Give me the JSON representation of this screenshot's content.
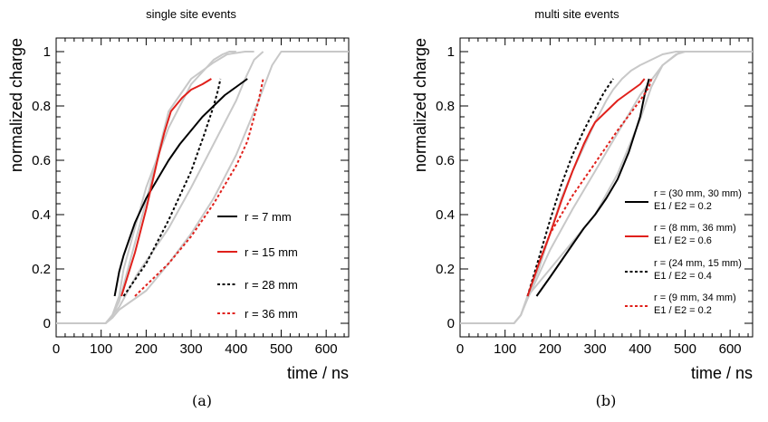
{
  "chart_data": [
    {
      "type": "line",
      "title": "single site events",
      "xlabel": "time / ns",
      "ylabel": "normalized charge",
      "caption": "(a)",
      "xlim": [
        0,
        650
      ],
      "ylim": [
        -0.05,
        1.05
      ],
      "xticks": [
        "0",
        "100",
        "200",
        "300",
        "400",
        "500",
        "600"
      ],
      "yticks": [
        "0",
        "0.2",
        "0.4",
        "0.6",
        "0.8",
        "1"
      ],
      "legend_position": "lower-right",
      "background_curves": [
        {
          "color": "#c8c8c8",
          "x": [
            0,
            110,
            125,
            140,
            150,
            200,
            250,
            300,
            350,
            370,
            385,
            400
          ],
          "y": [
            0,
            0,
            0.03,
            0.1,
            0.2,
            0.5,
            0.72,
            0.88,
            0.97,
            0.99,
            1,
            1
          ]
        },
        {
          "color": "#c8c8c8",
          "x": [
            0,
            110,
            125,
            140,
            150,
            200,
            250,
            300,
            350,
            380,
            420,
            440
          ],
          "y": [
            0,
            0,
            0.03,
            0.08,
            0.14,
            0.45,
            0.78,
            0.9,
            0.96,
            0.99,
            1,
            1
          ]
        },
        {
          "color": "#c8c8c8",
          "x": [
            0,
            110,
            125,
            140,
            180,
            250,
            300,
            350,
            400,
            420,
            440,
            460
          ],
          "y": [
            0,
            0,
            0.03,
            0.06,
            0.18,
            0.35,
            0.5,
            0.66,
            0.82,
            0.9,
            0.97,
            1
          ]
        },
        {
          "color": "#c8c8c8",
          "x": [
            0,
            110,
            125,
            140,
            200,
            250,
            300,
            350,
            400,
            450,
            480,
            500,
            650
          ],
          "y": [
            0,
            0,
            0.02,
            0.05,
            0.12,
            0.22,
            0.33,
            0.46,
            0.62,
            0.82,
            0.95,
            1,
            1
          ]
        }
      ],
      "series": [
        {
          "name": "r = 7 mm",
          "color": "#000000",
          "dash": "solid",
          "x": [
            130,
            140,
            150,
            175,
            200,
            225,
            250,
            275,
            300,
            325,
            350,
            375,
            400,
            425
          ],
          "y": [
            0.1,
            0.19,
            0.25,
            0.37,
            0.46,
            0.53,
            0.6,
            0.66,
            0.71,
            0.76,
            0.8,
            0.84,
            0.87,
            0.9
          ]
        },
        {
          "name": "r = 15 mm",
          "color": "#e0201b",
          "dash": "solid",
          "x": [
            145,
            175,
            200,
            225,
            240,
            255,
            265,
            280,
            300,
            325,
            345
          ],
          "y": [
            0.1,
            0.26,
            0.42,
            0.6,
            0.7,
            0.78,
            0.8,
            0.83,
            0.86,
            0.88,
            0.9
          ]
        },
        {
          "name": "r = 28 mm",
          "color": "#000000",
          "dash": "dash",
          "x": [
            150,
            200,
            250,
            300,
            330,
            350,
            360,
            365
          ],
          "y": [
            0.1,
            0.22,
            0.38,
            0.56,
            0.7,
            0.8,
            0.86,
            0.9
          ]
        },
        {
          "name": "r = 36 mm",
          "color": "#e0201b",
          "dash": "dash",
          "x": [
            175,
            200,
            250,
            300,
            350,
            400,
            425,
            440,
            450,
            460
          ],
          "y": [
            0.1,
            0.14,
            0.22,
            0.32,
            0.44,
            0.58,
            0.67,
            0.76,
            0.82,
            0.9
          ]
        }
      ]
    },
    {
      "type": "line",
      "title": "multi site events",
      "xlabel": "time / ns",
      "ylabel": "normalized charge",
      "caption": "(b)",
      "xlim": [
        0,
        650
      ],
      "ylim": [
        -0.05,
        1.05
      ],
      "xticks": [
        "0",
        "100",
        "200",
        "300",
        "400",
        "500",
        "600"
      ],
      "yticks": [
        "0",
        "0.2",
        "0.4",
        "0.6",
        "0.8",
        "1"
      ],
      "legend_position": "lower-right",
      "background_curves": [
        {
          "color": "#c8c8c8",
          "x": [
            0,
            120,
            135,
            150,
            175,
            200,
            225,
            250,
            275,
            300,
            325,
            340,
            360,
            380,
            400,
            425,
            450,
            480,
            500,
            650
          ],
          "y": [
            0,
            0,
            0.03,
            0.1,
            0.2,
            0.33,
            0.46,
            0.56,
            0.65,
            0.74,
            0.82,
            0.86,
            0.9,
            0.93,
            0.95,
            0.97,
            0.99,
            1,
            1,
            1
          ]
        },
        {
          "color": "#c8c8c8",
          "x": [
            0,
            120,
            135,
            150,
            170,
            200,
            250,
            300,
            350,
            400,
            425,
            450,
            480,
            500
          ],
          "y": [
            0,
            0,
            0.03,
            0.1,
            0.14,
            0.2,
            0.3,
            0.4,
            0.55,
            0.75,
            0.87,
            0.95,
            0.99,
            1
          ]
        },
        {
          "color": "#c8c8c8",
          "x": [
            0,
            120,
            135,
            150,
            175,
            200,
            250,
            300,
            350,
            400,
            450,
            490,
            500
          ],
          "y": [
            0,
            0,
            0.03,
            0.09,
            0.18,
            0.27,
            0.42,
            0.56,
            0.7,
            0.84,
            0.95,
            1,
            1
          ]
        }
      ],
      "series": [
        {
          "name": "r = (30 mm, 30 mm)",
          "ratio": "E1 / E2 = 0.2",
          "color": "#000000",
          "dash": "solid",
          "x": [
            170,
            200,
            225,
            250,
            275,
            300,
            325,
            350,
            375,
            400,
            410,
            420
          ],
          "y": [
            0.1,
            0.17,
            0.23,
            0.29,
            0.35,
            0.4,
            0.46,
            0.53,
            0.63,
            0.76,
            0.84,
            0.9
          ]
        },
        {
          "name": "r = (8 mm, 36 mm)",
          "ratio": "E1 / E2 = 0.6",
          "color": "#e0201b",
          "dash": "solid",
          "x": [
            150,
            175,
            200,
            225,
            250,
            275,
            290,
            300,
            325,
            350,
            375,
            400,
            410
          ],
          "y": [
            0.1,
            0.22,
            0.33,
            0.45,
            0.56,
            0.66,
            0.71,
            0.74,
            0.78,
            0.82,
            0.85,
            0.88,
            0.9
          ]
        },
        {
          "name": "r = (24 mm, 15 mm)",
          "ratio": "E1 / E2 = 0.4",
          "color": "#000000",
          "dash": "dash",
          "x": [
            150,
            175,
            200,
            225,
            250,
            275,
            300,
            320,
            340
          ],
          "y": [
            0.1,
            0.24,
            0.38,
            0.51,
            0.62,
            0.71,
            0.79,
            0.85,
            0.9
          ]
        },
        {
          "name": "r = (9 mm, 34 mm)",
          "ratio": "E1 / E2 = 0.2",
          "color": "#e0201b",
          "dash": "dash",
          "x": [
            150,
            175,
            200,
            250,
            300,
            350,
            400,
            420,
            425
          ],
          "y": [
            0.1,
            0.22,
            0.33,
            0.47,
            0.59,
            0.71,
            0.82,
            0.87,
            0.9
          ]
        }
      ]
    }
  ]
}
